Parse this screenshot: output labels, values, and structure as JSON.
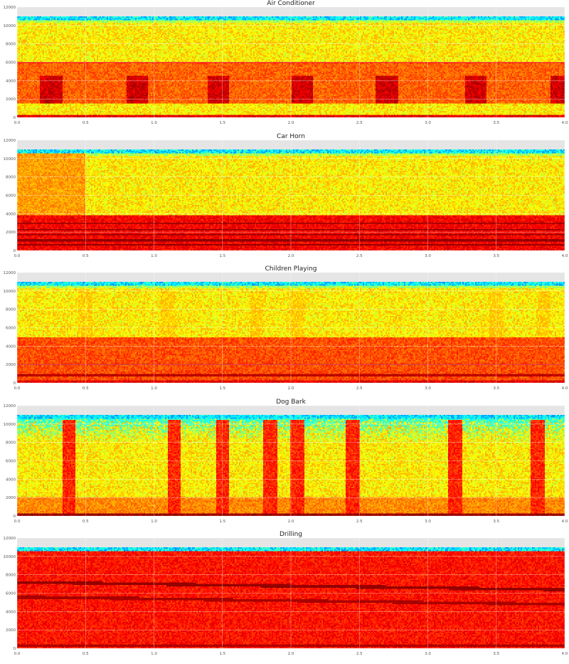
{
  "colors": {
    "background": "#ffffff",
    "plot_bg": "#e5e5e5",
    "grid": "#ffffff",
    "text": "#222222",
    "tick_text": "#555555"
  },
  "chart_data": [
    {
      "type": "heatmap",
      "title": "Air Conditioner",
      "xlabel": "",
      "ylabel": "",
      "xlim": [
        0,
        4
      ],
      "ylim": [
        0,
        12000
      ],
      "x_ticks": [
        "0.0",
        "0.5",
        "1.0",
        "1.5",
        "2.0",
        "2.5",
        "3.0",
        "3.5",
        "4.0"
      ],
      "y_ticks": [
        "0",
        "2000",
        "4000",
        "6000",
        "8000",
        "10000",
        "12000"
      ],
      "colormap": "jet",
      "max_frequency": 11025,
      "grid": true,
      "features": [
        {
          "kind": "floor_band",
          "y_from": 0,
          "y_to": 300,
          "level": 0.9
        },
        {
          "kind": "band",
          "y_from": 1500,
          "y_to": 6000,
          "level": 0.78
        },
        {
          "kind": "line",
          "y": 6000,
          "level": 0.88
        },
        {
          "kind": "bursts",
          "x": [
            0.25,
            0.88,
            1.47,
            2.08,
            2.7,
            3.35,
            3.98
          ],
          "width": 0.16,
          "y_from": 1500,
          "y_to": 4500,
          "level": 0.92
        }
      ]
    },
    {
      "type": "heatmap",
      "title": "Car Horn",
      "xlabel": "",
      "ylabel": "",
      "xlim": [
        0,
        4
      ],
      "ylim": [
        0,
        12000
      ],
      "x_ticks": [
        "0.0",
        "0.5",
        "1.0",
        "1.5",
        "2.0",
        "2.5",
        "3.0",
        "3.5",
        "4.0"
      ],
      "y_ticks": [
        "0",
        "2000",
        "4000",
        "6000",
        "8000",
        "10000",
        "12000"
      ],
      "colormap": "jet",
      "max_frequency": 11025,
      "grid": true,
      "features": [
        {
          "kind": "band",
          "y_from": 0,
          "y_to": 3800,
          "level": 0.88
        },
        {
          "kind": "harmonics",
          "y": [
            600,
            1100,
            1700,
            2300,
            3000
          ],
          "level": 0.98
        },
        {
          "kind": "region",
          "x_from": 0,
          "x_to": 0.5,
          "y_from": 3800,
          "y_to": 11000,
          "level": 0.72
        }
      ]
    },
    {
      "type": "heatmap",
      "title": "Children Playing",
      "xlabel": "",
      "ylabel": "",
      "xlim": [
        0,
        4
      ],
      "ylim": [
        0,
        12000
      ],
      "x_ticks": [
        "0.0",
        "0.5",
        "1.0",
        "1.5",
        "2.0",
        "2.5",
        "3.0",
        "3.5",
        "4.0"
      ],
      "y_ticks": [
        "0",
        "2000",
        "4000",
        "6000",
        "8000",
        "10000",
        "12000"
      ],
      "colormap": "jet",
      "max_frequency": 11025,
      "grid": true,
      "features": [
        {
          "kind": "floor_band",
          "y_from": 0,
          "y_to": 300,
          "level": 0.9
        },
        {
          "kind": "band",
          "y_from": 300,
          "y_to": 5000,
          "level": 0.8
        },
        {
          "kind": "line",
          "y": 2000,
          "level": 0.92
        },
        {
          "kind": "line",
          "y": 800,
          "level": 0.94
        },
        {
          "kind": "bursts",
          "x": [
            0.5,
            1.1,
            1.75,
            2.05,
            3.5,
            3.85
          ],
          "width": 0.1,
          "y_from": 5000,
          "y_to": 10000,
          "level": 0.66
        }
      ]
    },
    {
      "type": "heatmap",
      "title": "Dog Bark",
      "xlabel": "",
      "ylabel": "",
      "xlim": [
        0,
        4
      ],
      "ylim": [
        0,
        12000
      ],
      "x_ticks": [
        "0.0",
        "0.5",
        "1.0",
        "1.5",
        "2.0",
        "2.5",
        "3.0",
        "3.5",
        "4.0"
      ],
      "y_ticks": [
        "0",
        "2000",
        "4000",
        "6000",
        "8000",
        "10000",
        "12000"
      ],
      "colormap": "jet",
      "max_frequency": 11025,
      "grid": true,
      "features": [
        {
          "kind": "floor_band",
          "y_from": 0,
          "y_to": 250,
          "level": 0.98
        },
        {
          "kind": "band",
          "y_from": 250,
          "y_to": 2000,
          "level": 0.74
        },
        {
          "kind": "cool_top",
          "y_from": 8000,
          "y_to": 11000,
          "level": 0.38
        },
        {
          "kind": "bursts",
          "x": [
            0.38,
            1.15,
            1.5,
            1.85,
            2.05,
            2.45,
            3.2,
            3.8
          ],
          "width": 0.1,
          "y_from": 0,
          "y_to": 10500,
          "level": 0.84
        }
      ]
    },
    {
      "type": "heatmap",
      "title": "Drilling",
      "xlabel": "",
      "ylabel": "",
      "xlim": [
        0,
        4
      ],
      "ylim": [
        0,
        12000
      ],
      "x_ticks": [
        "0.0",
        "0.5",
        "1.0",
        "1.5",
        "2.0",
        "2.5",
        "3.0",
        "3.5",
        "4.0"
      ],
      "y_ticks": [
        "0",
        "2000",
        "4000",
        "6000",
        "8000",
        "10000",
        "12000"
      ],
      "colormap": "jet",
      "max_frequency": 11025,
      "grid": true,
      "features": [
        {
          "kind": "band",
          "y_from": 0,
          "y_to": 10800,
          "level": 0.86
        },
        {
          "kind": "sweep",
          "y_start": 7200,
          "y_end": 6400,
          "level": 0.98
        },
        {
          "kind": "sweep",
          "y_start": 5600,
          "y_end": 4800,
          "level": 0.96
        },
        {
          "kind": "line",
          "y": 300,
          "level": 0.95
        }
      ]
    }
  ]
}
